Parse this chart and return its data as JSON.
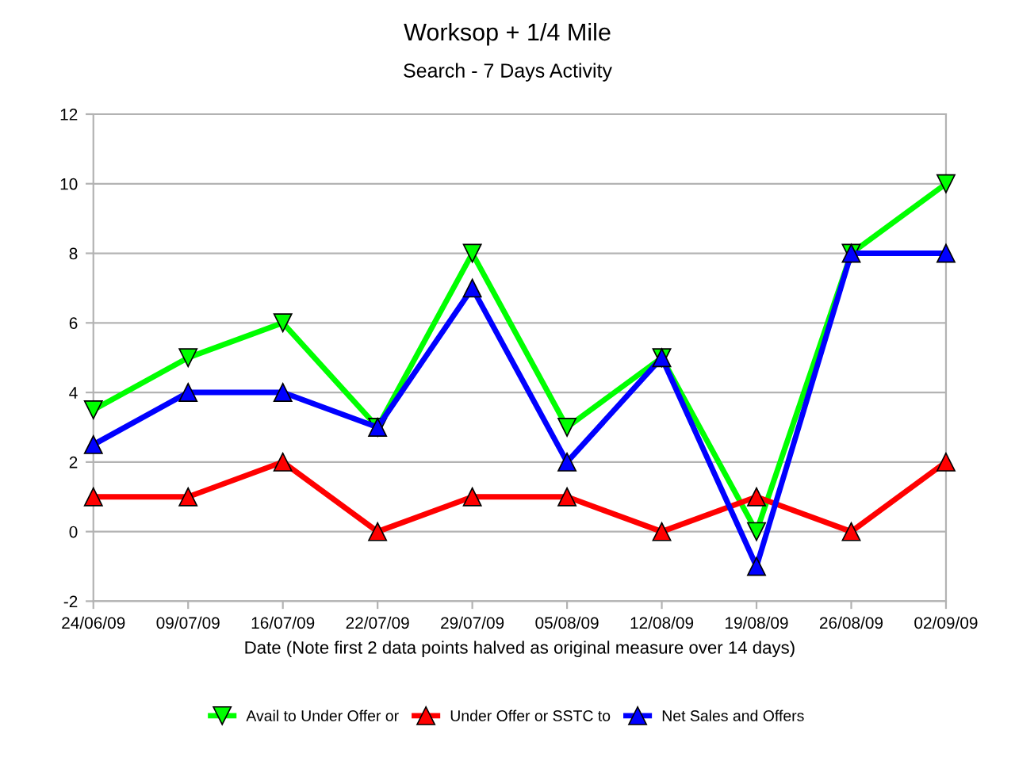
{
  "chart_data": {
    "type": "line",
    "title": "Worksop + 1/4 Mile",
    "subtitle": "Search - 7 Days Activity",
    "xlabel": "Date (Note first 2 data points halved as original measure over 14 days)",
    "categories": [
      "24/06/09",
      "09/07/09",
      "16/07/09",
      "22/07/09",
      "29/07/09",
      "05/08/09",
      "12/08/09",
      "19/08/09",
      "26/08/09",
      "02/09/09"
    ],
    "series": [
      {
        "name": "Avail to Under Offer or",
        "color": "#00ff00",
        "marker": "triangle_down",
        "values": [
          3.5,
          5,
          6,
          3,
          8,
          3,
          5,
          0,
          8,
          10
        ]
      },
      {
        "name": "Under Offer or SSTC to",
        "color": "#ff0000",
        "values": [
          1,
          1,
          2,
          0,
          1,
          1,
          0,
          1,
          0,
          2
        ]
      },
      {
        "name": "Net Sales and Offers",
        "color": "#0000ff",
        "values": [
          2.5,
          4,
          4,
          3,
          7,
          2,
          5,
          -1,
          8,
          8
        ]
      }
    ],
    "ylim": [
      -2,
      12
    ],
    "yticks": [
      -2,
      0,
      2,
      4,
      6,
      8,
      10,
      12
    ],
    "grid": "y",
    "legend": "bottom",
    "marker": "triangle",
    "line_style": "solid"
  }
}
